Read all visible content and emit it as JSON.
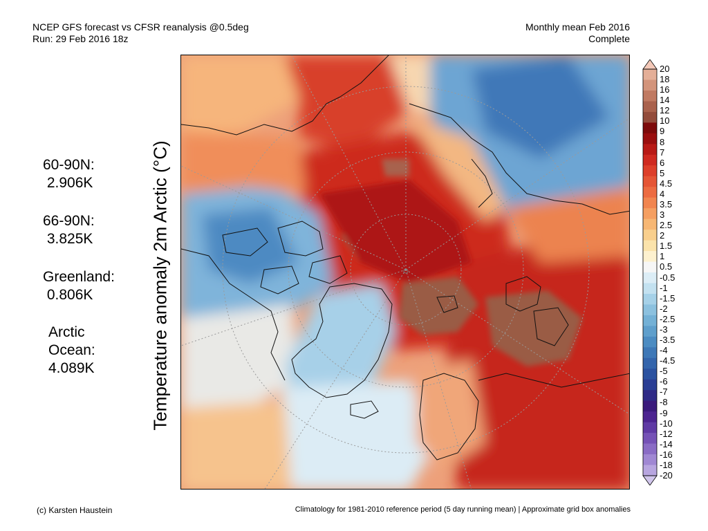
{
  "header": {
    "left_line1": "NCEP GFS forecast vs CFSR reanalysis @0.5deg",
    "left_line2": "Run: 29 Feb 2016 18z",
    "right_line1": "Monthly mean Feb 2016",
    "right_line2": "Complete"
  },
  "y_axis_label": "Temperature anomaly 2m Arctic (°C)",
  "stats": [
    {
      "label": "60-90N:",
      "value": "2.906K"
    },
    {
      "label": "66-90N:",
      "value": "3.825K"
    },
    {
      "label": "Greenland:",
      "value": "0.806K"
    },
    {
      "label": "Arctic\nOcean:",
      "value": "4.089K"
    }
  ],
  "footer": {
    "left": "(c) Karsten Haustein",
    "right": "Climatology for 1981-2010 reference period (5 day running mean) | Approximate grid box anomalies"
  },
  "colorbar": {
    "labels": [
      "20",
      "18",
      "16",
      "14",
      "12",
      "10",
      "9",
      "8",
      "7",
      "6",
      "5",
      "4.5",
      "4",
      "3.5",
      "3",
      "2.5",
      "2",
      "1.5",
      "1",
      "0.5",
      "-0.5",
      "-1",
      "-1.5",
      "-2",
      "-2.5",
      "-3",
      "-3.5",
      "-4",
      "-4.5",
      "-5",
      "-6",
      "-7",
      "-8",
      "-9",
      "-10",
      "-12",
      "-14",
      "-16",
      "-18",
      "-20"
    ],
    "colors": [
      "#f3c8b8",
      "#e4af98",
      "#d3947b",
      "#c07a62",
      "#aa624d",
      "#934c3b",
      "#7d0b0b",
      "#9a0f0f",
      "#b81a16",
      "#cf2a20",
      "#dd3f2a",
      "#e55535",
      "#ec6b41",
      "#f1854f",
      "#f59f61",
      "#f7b774",
      "#f9cf8d",
      "#fbe3ab",
      "#fdf1cf",
      "#f6f6f6",
      "#dcedf6",
      "#c3e1f0",
      "#a6d1e8",
      "#8cc1df",
      "#74b1d6",
      "#5f9fcc",
      "#4c8cc2",
      "#3e78b7",
      "#3465ac",
      "#2b52a0",
      "#2a3e94",
      "#2f2a86",
      "#3a1a7c",
      "#4c2490",
      "#5f3aa4",
      "#7552b6",
      "#8a6cc5",
      "#a088d3",
      "#b8a6e0",
      "#d1c6ec"
    ]
  },
  "map": {
    "land_color": "#111111",
    "grid_color": "#999999"
  }
}
